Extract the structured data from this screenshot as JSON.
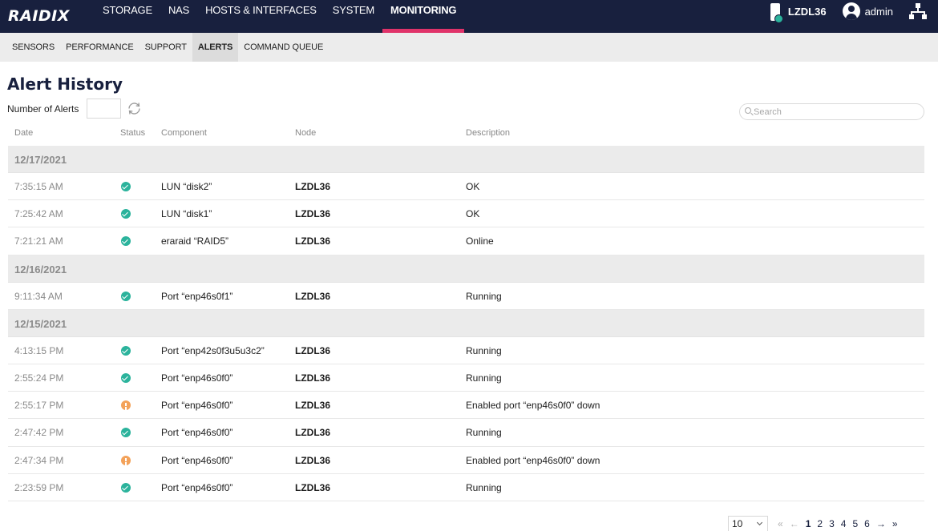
{
  "brand": {
    "logo_text": "RAIDIX"
  },
  "nav": {
    "items": [
      {
        "label": "STORAGE"
      },
      {
        "label": "NAS"
      },
      {
        "label": "HOSTS & INTERFACES"
      },
      {
        "label": "SYSTEM"
      },
      {
        "label": "MONITORING",
        "active": true
      }
    ]
  },
  "topright": {
    "node": "LZDL36",
    "user": "admin"
  },
  "subnav": {
    "items": [
      {
        "label": "SENSORS"
      },
      {
        "label": "PERFORMANCE"
      },
      {
        "label": "SUPPORT"
      },
      {
        "label": "ALERTS",
        "active": true
      },
      {
        "label": "COMMAND QUEUE"
      }
    ]
  },
  "page": {
    "title": "Alert History",
    "count_label": "Number of Alerts",
    "count_value": "",
    "search_placeholder": "Search"
  },
  "table": {
    "headers": {
      "date": "Date",
      "status": "Status",
      "component": "Component",
      "node": "Node",
      "description": "Description"
    },
    "groups": [
      {
        "date": "12/17/2021",
        "rows": [
          {
            "time": "7:35:15 AM",
            "status": "ok",
            "component": "LUN “disk2”",
            "node": "LZDL36",
            "description": "OK"
          },
          {
            "time": "7:25:42 AM",
            "status": "ok",
            "component": "LUN “disk1”",
            "node": "LZDL36",
            "description": "OK"
          },
          {
            "time": "7:21:21 AM",
            "status": "ok",
            "component": "eraraid “RAID5”",
            "node": "LZDL36",
            "description": "Online"
          }
        ]
      },
      {
        "date": "12/16/2021",
        "rows": [
          {
            "time": "9:11:34 AM",
            "status": "ok",
            "component": "Port “enp46s0f1”",
            "node": "LZDL36",
            "description": "Running"
          }
        ]
      },
      {
        "date": "12/15/2021",
        "rows": [
          {
            "time": "4:13:15 PM",
            "status": "ok",
            "component": "Port “enp42s0f3u5u3c2”",
            "node": "LZDL36",
            "description": "Running"
          },
          {
            "time": "2:55:24 PM",
            "status": "ok",
            "component": "Port “enp46s0f0”",
            "node": "LZDL36",
            "description": "Running"
          },
          {
            "time": "2:55:17 PM",
            "status": "warning",
            "component": "Port “enp46s0f0”",
            "node": "LZDL36",
            "description": "Enabled port “enp46s0f0” down"
          },
          {
            "time": "2:47:42 PM",
            "status": "ok",
            "component": "Port “enp46s0f0”",
            "node": "LZDL36",
            "description": "Running"
          },
          {
            "time": "2:47:34 PM",
            "status": "warning",
            "component": "Port “enp46s0f0”",
            "node": "LZDL36",
            "description": "Enabled port “enp46s0f0” down"
          },
          {
            "time": "2:23:59 PM",
            "status": "ok",
            "component": "Port “enp46s0f0”",
            "node": "LZDL36",
            "description": "Running"
          }
        ]
      }
    ]
  },
  "pagination": {
    "per_page": "10",
    "first": "«",
    "prev": "←",
    "pages": [
      "1",
      "2",
      "3",
      "4",
      "5",
      "6"
    ],
    "current": "1",
    "next": "→",
    "last": "»"
  },
  "colors": {
    "topbar": "#18203e",
    "accent": "#e0336a",
    "ok": "#2bb39c",
    "warning": "#f3a25a"
  },
  "icons": {
    "status_ok": "check-circle-icon",
    "status_warning": "exclamation-circle-icon",
    "refresh": "refresh-icon",
    "search": "search-icon",
    "user": "user-circle-icon",
    "network": "network-icon",
    "node": "device-icon"
  }
}
